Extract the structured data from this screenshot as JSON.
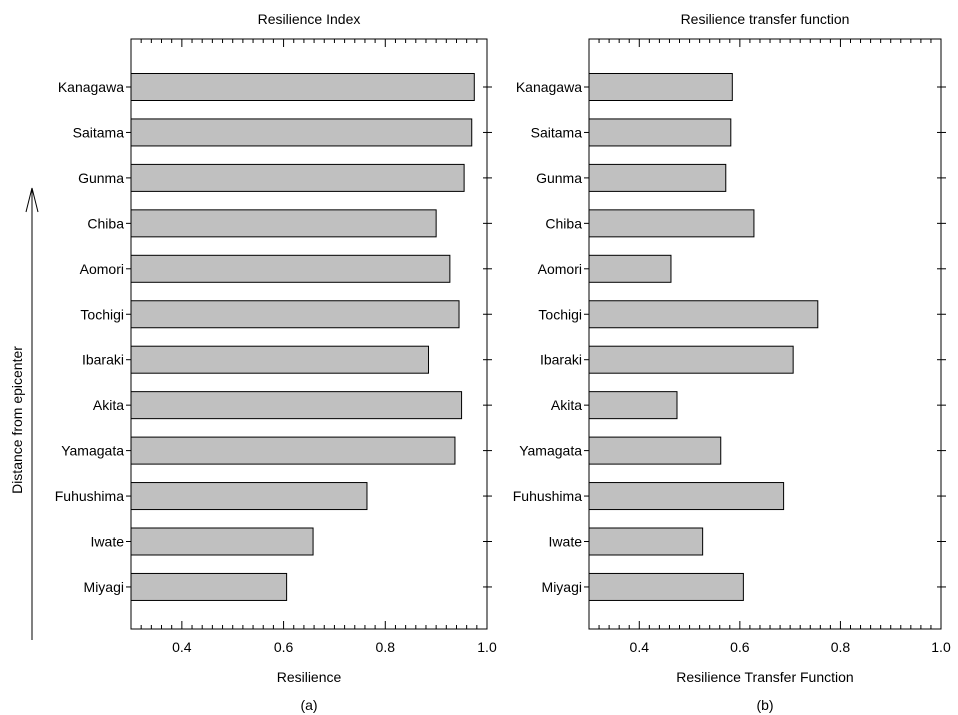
{
  "figure_side_label": "Distance from epicenter",
  "chart_data": [
    {
      "type": "bar",
      "orientation": "horizontal",
      "title": "Resilience Index",
      "xlabel": "Resilience",
      "panel_label": "(a)",
      "categories": [
        "Kanagawa",
        "Saitama",
        "Gunma",
        "Chiba",
        "Aomori",
        "Tochigi",
        "Ibaraki",
        "Akita",
        "Yamagata",
        "Fuhushima",
        "Iwate",
        "Miyagi"
      ],
      "values": [
        0.975,
        0.97,
        0.955,
        0.9,
        0.927,
        0.945,
        0.885,
        0.95,
        0.937,
        0.764,
        0.658,
        0.606
      ],
      "xlim": [
        0.3,
        1.0
      ],
      "xticks": [
        "0.4",
        "0.6",
        "0.8",
        "1.0"
      ],
      "grid": false,
      "bar_color": "#c0c0c0"
    },
    {
      "type": "bar",
      "orientation": "horizontal",
      "title": "Resilience transfer function",
      "xlabel": "Resilience Transfer Function",
      "panel_label": "(b)",
      "categories": [
        "Kanagawa",
        "Saitama",
        "Gunma",
        "Chiba",
        "Aomori",
        "Tochigi",
        "Ibaraki",
        "Akita",
        "Yamagata",
        "Fuhushima",
        "Iwate",
        "Miyagi"
      ],
      "values": [
        0.585,
        0.582,
        0.572,
        0.628,
        0.463,
        0.755,
        0.706,
        0.475,
        0.562,
        0.687,
        0.526,
        0.607
      ],
      "xlim": [
        0.3,
        1.0
      ],
      "xticks": [
        "0.4",
        "0.6",
        "0.8",
        "1.0"
      ],
      "grid": false,
      "bar_color": "#c0c0c0"
    }
  ]
}
